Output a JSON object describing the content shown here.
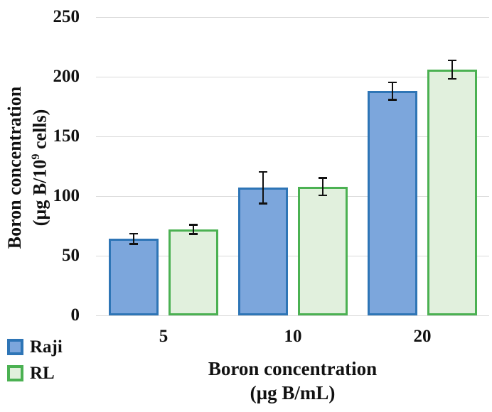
{
  "chart_data": {
    "type": "bar",
    "title": "",
    "categories": [
      "5",
      "10",
      "20"
    ],
    "series": [
      {
        "name": "Raji",
        "values": [
          64,
          107,
          188
        ],
        "errors": [
          5,
          14,
          8
        ],
        "fill": "#7CA6DC",
        "border": "#2E75B6"
      },
      {
        "name": "RL",
        "values": [
          72,
          108,
          206
        ],
        "errors": [
          4.5,
          8,
          8.5
        ],
        "fill": "#E1F0DD",
        "border": "#4BB152"
      }
    ],
    "xlabel_line1": "Boron concentration",
    "xlabel_line2": "(µg B/mL)",
    "ylabel_line1": "Boron concentration",
    "ylabel2_pre": "(µg B/10",
    "ylabel2_sup": "9",
    "ylabel2_post": " cells)",
    "ylim": [
      0,
      250
    ],
    "ytick_step": 50,
    "yticks": [
      0,
      50,
      100,
      150,
      200,
      250
    ],
    "grid": true,
    "legend_position": "bottom-left"
  },
  "colors": {
    "gridline": "#D9D9D9",
    "error_bar": "#111111",
    "text": "#111111",
    "background": "#FFFFFF"
  }
}
